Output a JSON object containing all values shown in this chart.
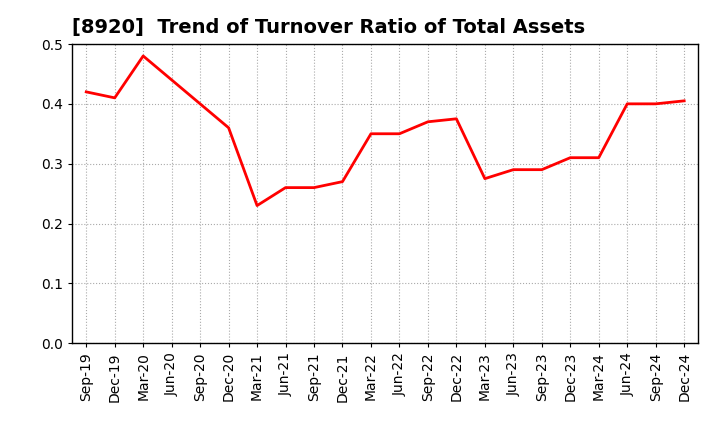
{
  "title": "[8920]  Trend of Turnover Ratio of Total Assets",
  "x_labels": [
    "Sep-19",
    "Dec-19",
    "Mar-20",
    "Jun-20",
    "Sep-20",
    "Dec-20",
    "Mar-21",
    "Jun-21",
    "Sep-21",
    "Dec-21",
    "Mar-22",
    "Jun-22",
    "Sep-22",
    "Dec-22",
    "Mar-23",
    "Jun-23",
    "Sep-23",
    "Dec-23",
    "Mar-24",
    "Jun-24",
    "Sep-24",
    "Dec-24"
  ],
  "values": [
    0.42,
    0.41,
    0.48,
    0.44,
    0.4,
    0.36,
    0.23,
    0.26,
    0.26,
    0.27,
    0.35,
    0.35,
    0.37,
    0.375,
    0.275,
    0.29,
    0.29,
    0.31,
    0.31,
    0.4,
    0.4,
    0.405
  ],
  "line_color": "#ff0000",
  "line_width": 2.0,
  "ylim": [
    0.0,
    0.5
  ],
  "yticks": [
    0.0,
    0.1,
    0.2,
    0.3,
    0.4,
    0.5
  ],
  "grid_color": "#aaaaaa",
  "background_color": "#ffffff",
  "title_fontsize": 14,
  "tick_fontsize": 10,
  "spine_color": "#000000"
}
